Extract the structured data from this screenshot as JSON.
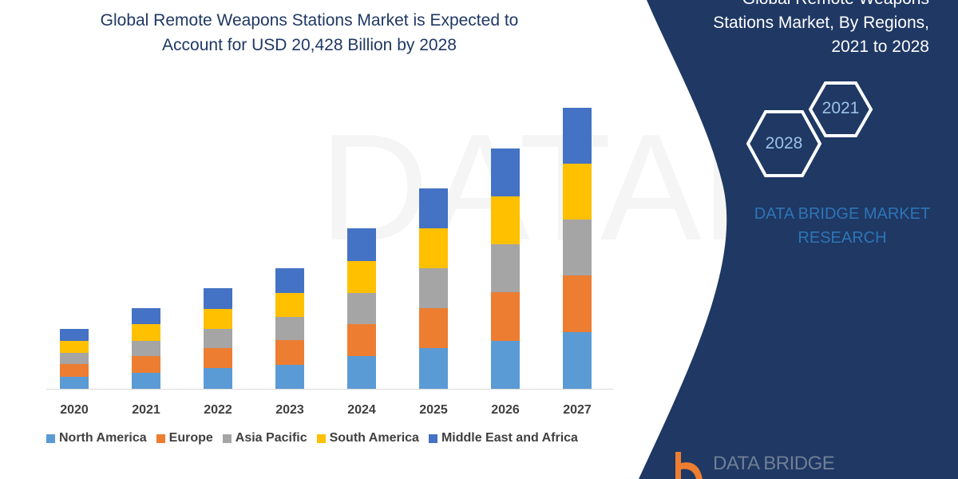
{
  "header": {
    "title_line1": "Global Remote Weapons Stations Market is Expected to",
    "title_line2": "Account for USD 20,428 Billion by 2028"
  },
  "side_panel": {
    "title_line1": "Global Remote Weapons",
    "title_line2": "Stations Market, By Regions,",
    "title_line3": "2021 to 2028",
    "hex_years": [
      "2021",
      "2028"
    ],
    "brand_line1": "DATA BRIDGE MARKET",
    "brand_line2": "RESEARCH",
    "logo_text": "DATA BRIDGE",
    "panel_color": "#1f3864"
  },
  "watermark": "DATA BRIDGE MARKET RESEARCH",
  "chart_data": {
    "type": "bar",
    "stacked": true,
    "title": "",
    "xlabel": "",
    "ylabel": "",
    "ylim": [
      0,
      40
    ],
    "grid": false,
    "legend_position": "bottom",
    "categories": [
      "2020",
      "2021",
      "2022",
      "2023",
      "2024",
      "2025",
      "2026",
      "2027"
    ],
    "series": [
      {
        "name": "North America",
        "color": "#5b9bd5",
        "values": [
          1.5,
          2.0,
          2.6,
          3.0,
          4.1,
          5.1,
          6.0,
          7.1
        ]
      },
      {
        "name": "Europe",
        "color": "#ed7d31",
        "values": [
          1.6,
          2.1,
          2.5,
          3.1,
          4.0,
          5.0,
          6.1,
          7.1
        ]
      },
      {
        "name": "Asia Pacific",
        "color": "#a5a5a5",
        "values": [
          1.4,
          1.9,
          2.4,
          2.9,
          3.9,
          5.0,
          6.0,
          7.0
        ]
      },
      {
        "name": "South America",
        "color": "#ffc000",
        "values": [
          1.5,
          2.1,
          2.5,
          3.0,
          4.0,
          5.0,
          6.0,
          7.0
        ]
      },
      {
        "name": "Middle East and Africa",
        "color": "#4472c4",
        "values": [
          1.5,
          2.0,
          2.6,
          3.1,
          4.1,
          5.0,
          6.0,
          7.0
        ]
      }
    ]
  }
}
